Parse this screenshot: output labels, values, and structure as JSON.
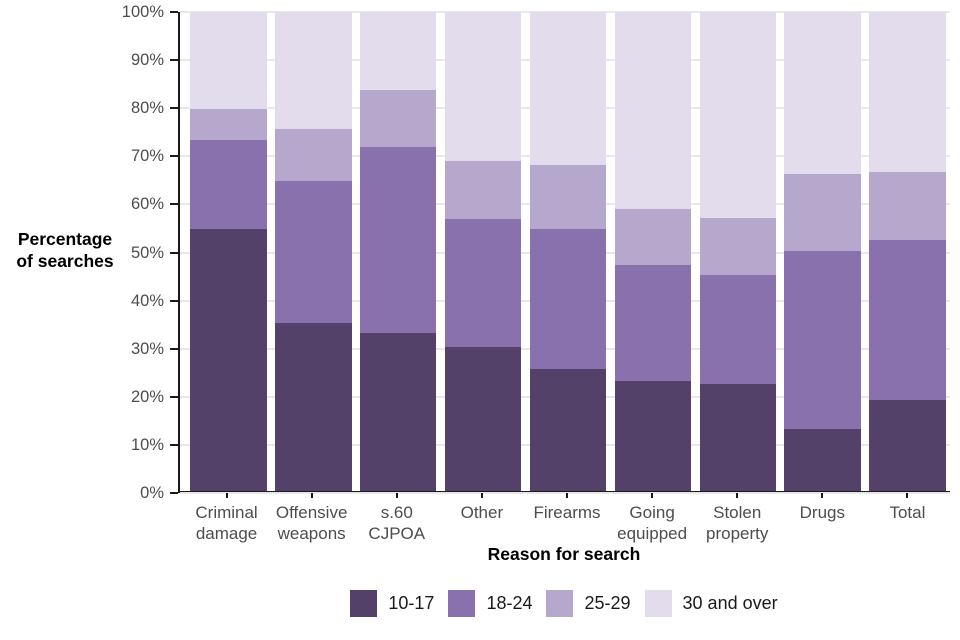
{
  "chart_data": {
    "type": "bar",
    "variant": "stacked-percentage",
    "title": "",
    "xlabel": "Reason for search",
    "ylabel": "Percentage\nof searches",
    "categories": [
      "Criminal damage",
      "Offensive weapons",
      "s.60 CJPOA",
      "Other",
      "Firearms",
      "Going equipped",
      "Stolen property",
      "Drugs",
      "Total"
    ],
    "x_tick_labels": [
      "Criminal\ndamage",
      "Offensive\nweapons",
      "s.60\nCJPOA",
      "Other",
      "Firearms",
      "Going\nequipped",
      "Stolen\nproperty",
      "Drugs",
      "Total"
    ],
    "series": [
      {
        "name": "10-17",
        "color": "#53416a",
        "values": [
          54.6,
          35.0,
          33.0,
          30.0,
          25.4,
          23.0,
          22.3,
          12.9,
          19.0
        ]
      },
      {
        "name": "18-24",
        "color": "#8971ad",
        "values": [
          18.6,
          29.8,
          38.8,
          26.8,
          29.3,
          24.1,
          22.7,
          37.3,
          33.5
        ]
      },
      {
        "name": "25-29",
        "color": "#b6a7cd",
        "values": [
          6.6,
          10.7,
          11.9,
          12.0,
          13.3,
          11.7,
          12.0,
          15.9,
          14.0
        ]
      },
      {
        "name": "30 and over",
        "color": "#e2dcec",
        "values": [
          20.2,
          24.5,
          16.3,
          31.2,
          32.0,
          41.2,
          43.0,
          33.9,
          33.5
        ]
      }
    ],
    "y_ticks": [
      "0%",
      "10%",
      "20%",
      "30%",
      "40%",
      "50%",
      "60%",
      "70%",
      "80%",
      "90%",
      "100%"
    ],
    "ylim": [
      0,
      100
    ],
    "grid": "horizontal",
    "legend_position": "bottom",
    "legend_labels": [
      "10-17",
      "18-24",
      "25-29",
      "30 and over"
    ]
  },
  "styles": {
    "axis_color": "#1a1a1a",
    "grid_color": "#e8e8e8",
    "tick_text_color": "#4d4d4d",
    "title_text_color": "#000000",
    "background": "#ffffff"
  }
}
